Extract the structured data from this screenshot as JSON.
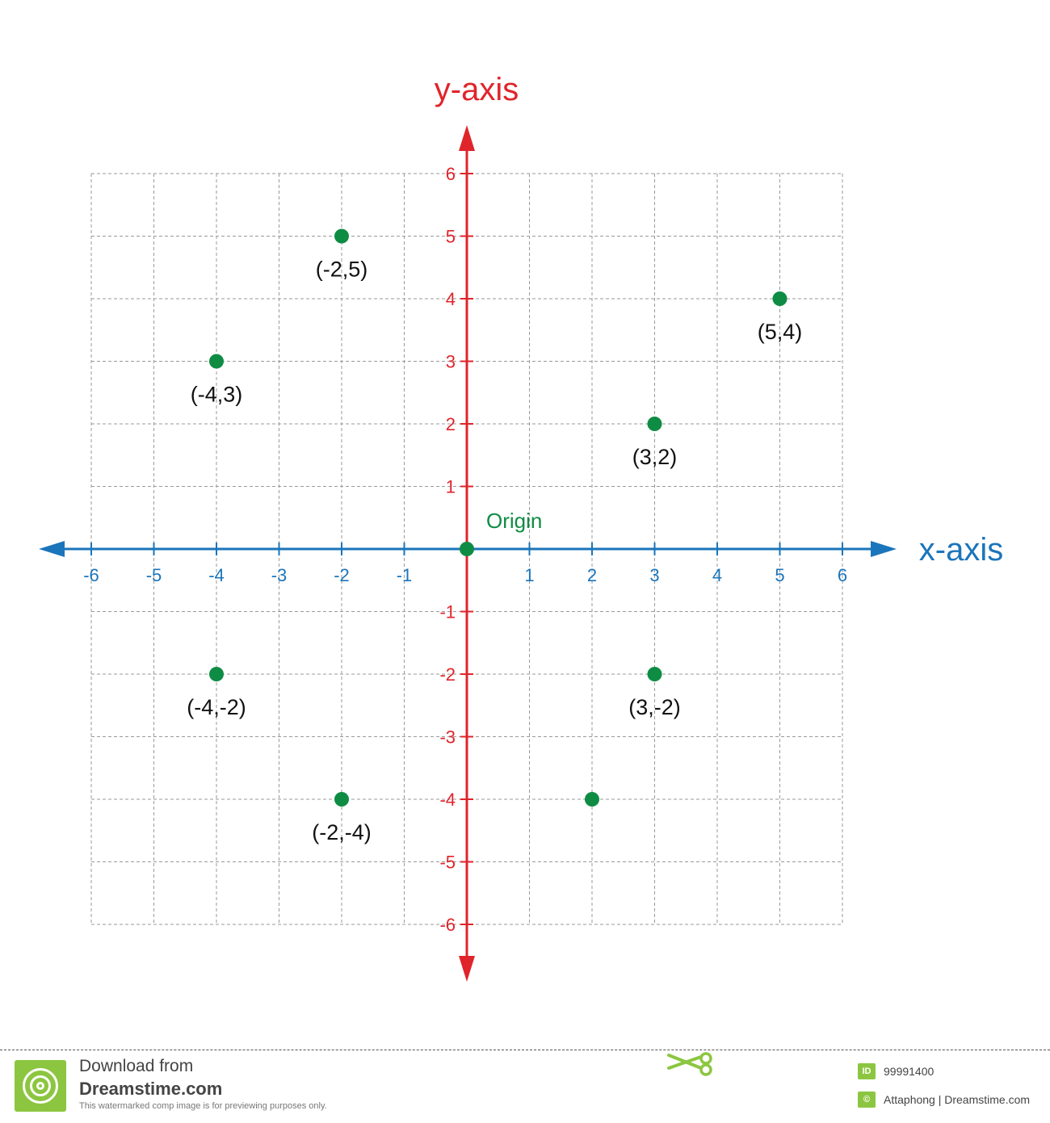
{
  "chart_data": {
    "type": "scatter",
    "title": "",
    "xlabel": "x-axis",
    "ylabel": "y-axis",
    "xlim": [
      -6,
      6
    ],
    "ylim": [
      -6,
      6
    ],
    "grid": true,
    "x_ticks": [
      "-6",
      "-5",
      "-4",
      "-3",
      "-2",
      "-1",
      "1",
      "2",
      "3",
      "4",
      "5",
      "6"
    ],
    "y_ticks": [
      "6",
      "5",
      "4",
      "3",
      "2",
      "1",
      "-1",
      "-2",
      "-3",
      "-4",
      "-5",
      "-6"
    ],
    "points": [
      {
        "x": -2,
        "y": 5,
        "label": "(-2,5)"
      },
      {
        "x": 5,
        "y": 4,
        "label": "(5,4)"
      },
      {
        "x": -4,
        "y": 3,
        "label": "(-4,3)"
      },
      {
        "x": 3,
        "y": 2,
        "label": "(3,2)"
      },
      {
        "x": 0,
        "y": 0,
        "label": "Origin"
      },
      {
        "x": -4,
        "y": -2,
        "label": "(-4,-2)"
      },
      {
        "x": 3,
        "y": -2,
        "label": "(3,-2)"
      },
      {
        "x": -2,
        "y": -4,
        "label": "(-2,-4)"
      },
      {
        "x": 2,
        "y": -4,
        "label": ""
      }
    ],
    "colors": {
      "x_axis": "#1b75bb",
      "y_axis": "#e0242b",
      "points": "#0f8c44",
      "grid": "#9a9a9a",
      "point_labels": "#111111"
    }
  },
  "footer": {
    "download_text": "Download from",
    "site_name": "Dreamstime.com",
    "disclaimer": "This watermarked comp image is for previewing purposes only.",
    "id_badge": "ID",
    "image_id": "99991400",
    "copyright_badge": "©",
    "credit": "Attaphong | Dreamstime.com",
    "scissors_icon": "scissors-icon",
    "logo_icon": "dreamstime-logo-icon"
  }
}
